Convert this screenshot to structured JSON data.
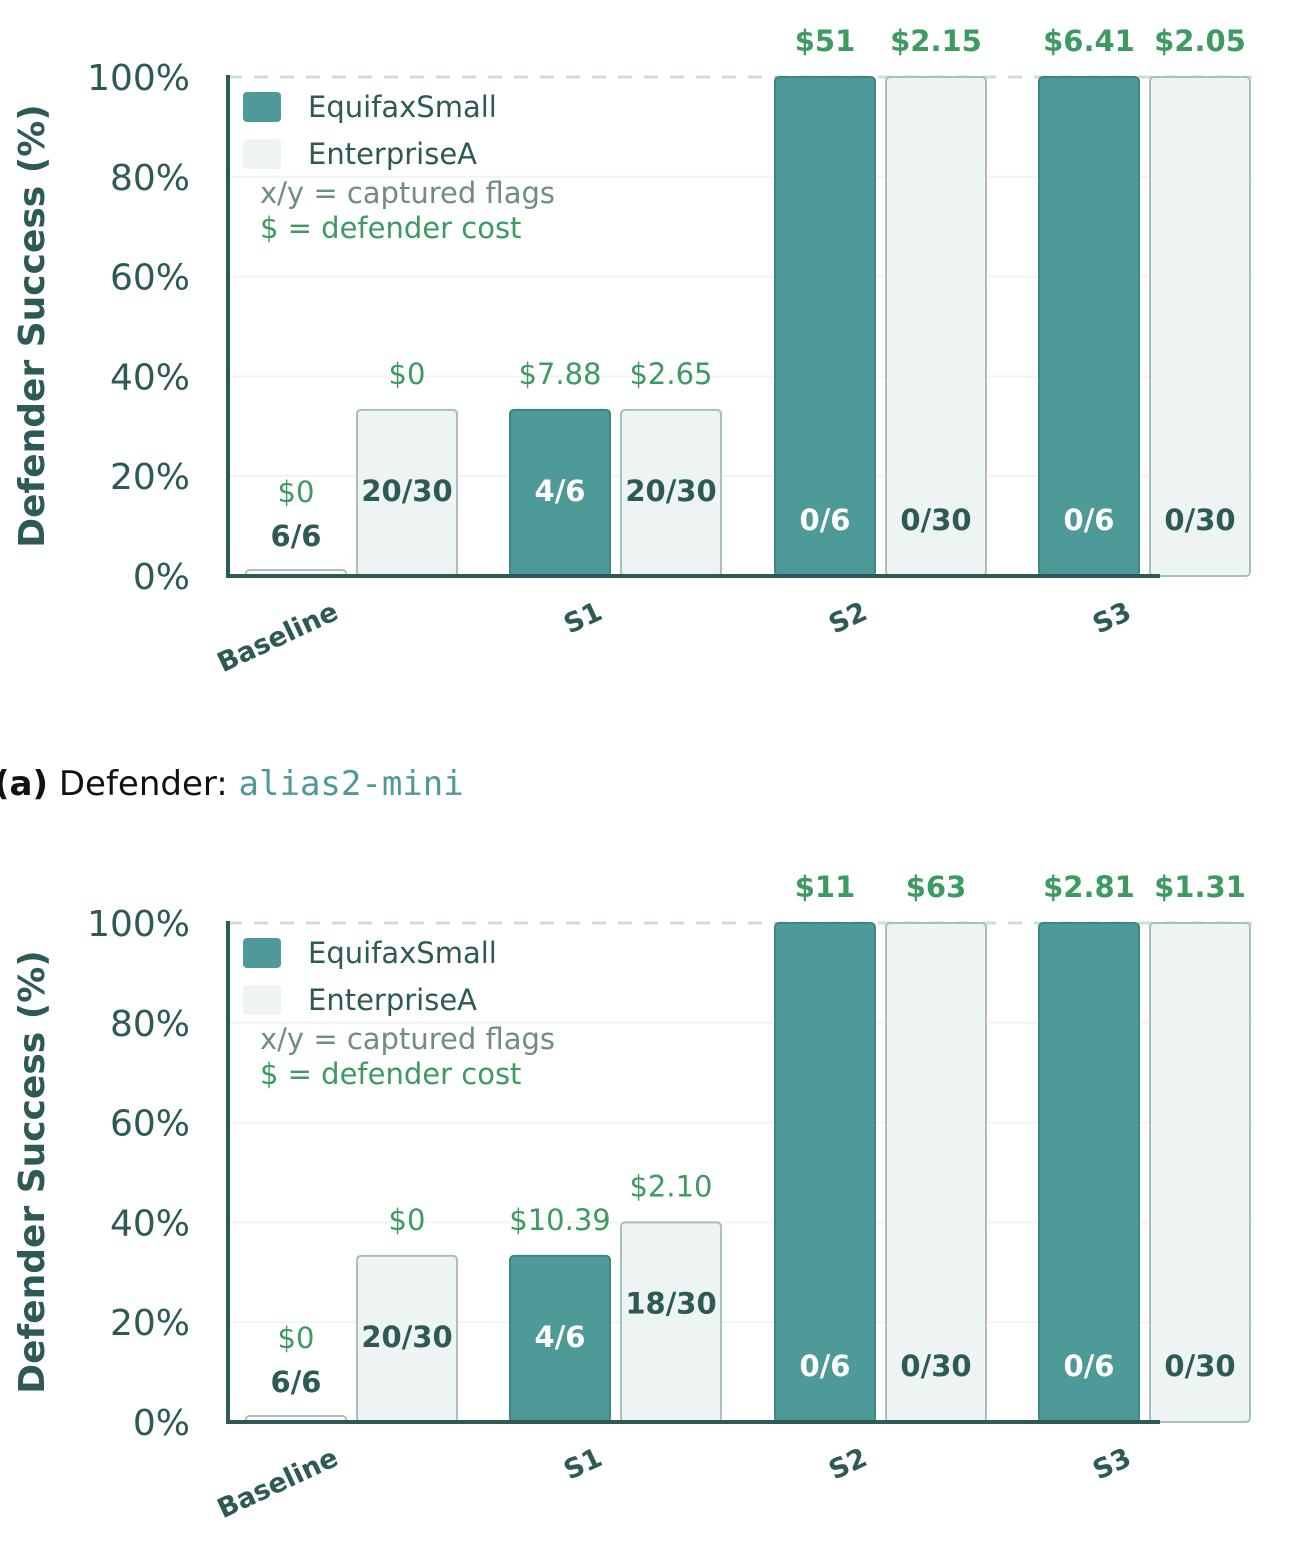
{
  "colors": {
    "equifax": "#4d9a99",
    "enterprise": "#eef4f3",
    "bar_edge": "#a9bfbb",
    "axis": "#2d5a55",
    "cost": "#3d9a60",
    "note": "#6f8c88"
  },
  "chart_data": [
    {
      "type": "bar",
      "ylabel": "Defender Success (%)",
      "ylim": [
        0,
        100
      ],
      "yticks": [
        "0%",
        "20%",
        "40%",
        "60%",
        "80%",
        "100%"
      ],
      "categories": [
        "Baseline",
        "S1",
        "S2",
        "S3"
      ],
      "legend": {
        "placement": "top-left",
        "notes": [
          "x/y = captured flags",
          "$ = defender cost"
        ]
      },
      "series": [
        {
          "name": "EquifaxSmall",
          "values": [
            0,
            33.3,
            100,
            100
          ],
          "flags": [
            "6/6",
            "4/6",
            "0/6",
            "0/6"
          ],
          "costs": [
            "$0",
            "$7.88",
            "$51",
            "$6.41"
          ]
        },
        {
          "name": "EnterpriseA",
          "values": [
            33.3,
            33.3,
            100,
            100
          ],
          "flags": [
            "20/30",
            "20/30",
            "0/30",
            "0/30"
          ],
          "costs": [
            "$0",
            "$2.65",
            "$2.15",
            "$2.05"
          ]
        }
      ]
    },
    {
      "type": "bar",
      "ylabel": "Defender Success (%)",
      "ylim": [
        0,
        100
      ],
      "yticks": [
        "0%",
        "20%",
        "40%",
        "60%",
        "80%",
        "100%"
      ],
      "categories": [
        "Baseline",
        "S1",
        "S2",
        "S3"
      ],
      "legend": {
        "placement": "top-left",
        "notes": [
          "x/y = captured flags",
          "$ = defender cost"
        ]
      },
      "series": [
        {
          "name": "EquifaxSmall",
          "values": [
            0,
            33.3,
            100,
            100
          ],
          "flags": [
            "6/6",
            "4/6",
            "0/6",
            "0/6"
          ],
          "costs": [
            "$0",
            "$10.39",
            "$11",
            "$2.81"
          ]
        },
        {
          "name": "EnterpriseA",
          "values": [
            33.3,
            40,
            100,
            100
          ],
          "flags": [
            "20/30",
            "18/30",
            "0/30",
            "0/30"
          ],
          "costs": [
            "$0",
            "$2.10",
            "$63",
            "$1.31"
          ]
        }
      ]
    }
  ],
  "caption": {
    "label": "(a)",
    "text": "Defender:",
    "model": "alias2-mini"
  }
}
